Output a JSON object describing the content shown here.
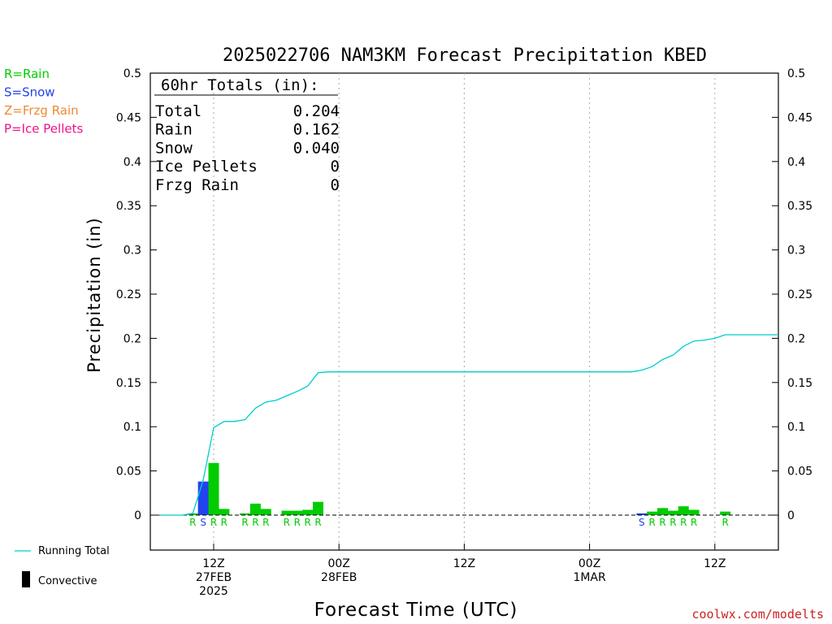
{
  "title": "2025022706 NAM3KM Forecast Precipitation KBED",
  "type_legend": [
    {
      "text": "R=Rain",
      "color": "#00cc00"
    },
    {
      "text": "S=Snow",
      "color": "#2244ee"
    },
    {
      "text": "Z=Frzg Rain",
      "color": "#ee8833"
    },
    {
      "text": "P=Ice Pellets",
      "color": "#ee1188"
    }
  ],
  "totals": {
    "header": "60hr Totals (in):",
    "rows": [
      {
        "label": "Total",
        "value": "0.204"
      },
      {
        "label": "Rain",
        "value": "0.162"
      },
      {
        "label": "Snow",
        "value": "0.040"
      },
      {
        "label": "Ice Pellets",
        "value": "0"
      },
      {
        "label": "Frzg Rain",
        "value": "0"
      }
    ]
  },
  "series_legend": {
    "running_total": "Running Total",
    "convective": "Convective"
  },
  "watermark": "coolwx.com/modelts",
  "colors": {
    "rain": "#00cc00",
    "snow": "#2244ee",
    "running_total": "#00cccc",
    "grid": "#aaaaaa"
  },
  "chart_data": {
    "type": "bar",
    "title": "2025022706 NAM3KM Forecast Precipitation KBED",
    "xlabel": "Forecast Time (UTC)",
    "ylabel": "Precipitation (in)",
    "ylim": [
      -0.04,
      0.5
    ],
    "yticks": [
      0,
      0.05,
      0.1,
      0.15,
      0.2,
      0.25,
      0.3,
      0.35,
      0.4,
      0.45,
      0.5
    ],
    "ytick_labels": [
      "0",
      "0.05",
      "0.1",
      "0.15",
      "0.2",
      "0.25",
      "0.3",
      "0.35",
      "0.4",
      "0.45",
      "0.5"
    ],
    "x_unit": "forecast hour",
    "xlim": [
      0,
      60
    ],
    "xticks": [
      {
        "x": 6,
        "lines": [
          "12Z",
          "27FEB",
          "2025"
        ]
      },
      {
        "x": 18,
        "lines": [
          "00Z",
          "28FEB"
        ]
      },
      {
        "x": 30,
        "lines": [
          "12Z"
        ]
      },
      {
        "x": 42,
        "lines": [
          "00Z",
          "1MAR"
        ]
      },
      {
        "x": 54,
        "lines": [
          "12Z"
        ]
      }
    ],
    "grid": "vertical dotted",
    "bars": [
      {
        "x": 4,
        "value": 0.002,
        "type": "R"
      },
      {
        "x": 5,
        "value": 0.038,
        "type": "S"
      },
      {
        "x": 6,
        "value": 0.059,
        "type": "R"
      },
      {
        "x": 7,
        "value": 0.007,
        "type": "R"
      },
      {
        "x": 9,
        "value": 0.002,
        "type": "R"
      },
      {
        "x": 10,
        "value": 0.013,
        "type": "R"
      },
      {
        "x": 11,
        "value": 0.007,
        "type": "R"
      },
      {
        "x": 13,
        "value": 0.005,
        "type": "R"
      },
      {
        "x": 14,
        "value": 0.005,
        "type": "R"
      },
      {
        "x": 15,
        "value": 0.006,
        "type": "R"
      },
      {
        "x": 16,
        "value": 0.015,
        "type": "R"
      },
      {
        "x": 47,
        "value": 0.002,
        "type": "S"
      },
      {
        "x": 48,
        "value": 0.004,
        "type": "R"
      },
      {
        "x": 49,
        "value": 0.008,
        "type": "R"
      },
      {
        "x": 50,
        "value": 0.005,
        "type": "R"
      },
      {
        "x": 51,
        "value": 0.01,
        "type": "R"
      },
      {
        "x": 52,
        "value": 0.006,
        "type": "R"
      },
      {
        "x": 55,
        "value": 0.004,
        "type": "R"
      }
    ],
    "running_total": {
      "name": "Running Total",
      "points": [
        [
          0,
          0
        ],
        [
          3,
          0
        ],
        [
          4,
          0.002
        ],
        [
          5,
          0.04
        ],
        [
          6,
          0.099
        ],
        [
          7,
          0.106
        ],
        [
          8,
          0.106
        ],
        [
          9,
          0.108
        ],
        [
          10,
          0.121
        ],
        [
          11,
          0.128
        ],
        [
          12,
          0.13
        ],
        [
          13,
          0.135
        ],
        [
          14,
          0.14
        ],
        [
          15,
          0.146
        ],
        [
          16,
          0.161
        ],
        [
          17,
          0.162
        ],
        [
          46,
          0.162
        ],
        [
          47,
          0.164
        ],
        [
          48,
          0.168
        ],
        [
          49,
          0.176
        ],
        [
          50,
          0.181
        ],
        [
          51,
          0.191
        ],
        [
          52,
          0.197
        ],
        [
          53,
          0.198
        ],
        [
          54,
          0.2
        ],
        [
          55,
          0.204
        ],
        [
          60,
          0.204
        ]
      ]
    }
  }
}
